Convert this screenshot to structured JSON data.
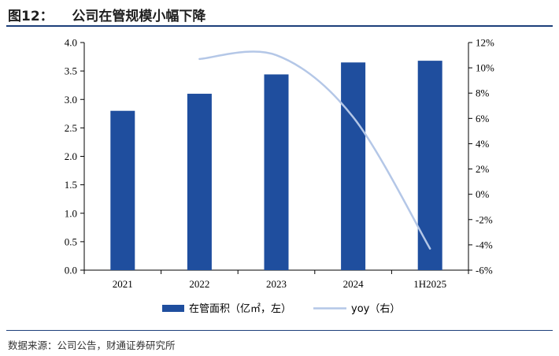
{
  "figure": {
    "title": "图12：    公司在管规模小幅下降",
    "source": "数据来源：公司公告，财通证券研究所"
  },
  "chart_data": {
    "type": "bar+line",
    "categories": [
      "2021",
      "2022",
      "2023",
      "2024",
      "1H2025"
    ],
    "series": [
      {
        "name": "在管面积（亿㎡，左）",
        "type": "bar",
        "axis": "left",
        "color": "#1f4e9e",
        "values": [
          2.8,
          3.1,
          3.44,
          3.65,
          3.68
        ]
      },
      {
        "name": "yoy（右）",
        "type": "line",
        "axis": "right",
        "color": "#b4c7e7",
        "values": [
          null,
          10.7,
          11.0,
          6.1,
          -4.3
        ]
      }
    ],
    "y_left": {
      "range": [
        0,
        4.0
      ],
      "ticks": [
        "0.0",
        "0.5",
        "1.0",
        "1.5",
        "2.0",
        "2.5",
        "3.0",
        "3.5",
        "4.0"
      ]
    },
    "y_right": {
      "range": [
        -6,
        12
      ],
      "ticks": [
        "-6%",
        "-4%",
        "-2%",
        "0%",
        "2%",
        "4%",
        "6%",
        "8%",
        "10%",
        "12%"
      ]
    },
    "grid": false,
    "legend": "bottom"
  }
}
